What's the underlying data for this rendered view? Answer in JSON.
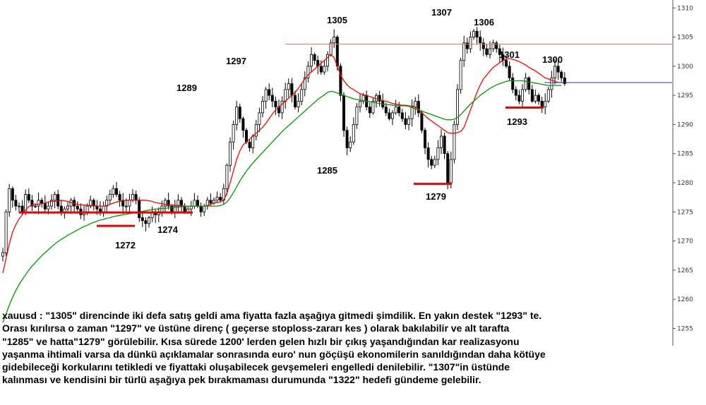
{
  "chart_data": {
    "type": "candlestick",
    "symbol": "xauusd",
    "ylim": [
      1253,
      1311
    ],
    "y_ticks": [
      1255,
      1260,
      1265,
      1270,
      1275,
      1280,
      1285,
      1290,
      1295,
      1300,
      1305,
      1310
    ],
    "grid": false,
    "moving_averages": [
      {
        "color": "#ff0000",
        "values": [
          1264.5,
          1267,
          1269.5,
          1271.5,
          1272.8,
          1273.8,
          1274.5,
          1275.3,
          1275.9,
          1276.2,
          1276.3,
          1276.3,
          1276.4,
          1276.5,
          1276.7,
          1276.8,
          1276.8,
          1276.9,
          1277,
          1276.9,
          1276.8,
          1276.6,
          1276.4,
          1276.3,
          1276.2,
          1276.2,
          1276.1,
          1276.1,
          1276.1,
          1276,
          1276,
          1276,
          1276.1,
          1276.3,
          1276.5,
          1276.7,
          1276.8,
          1276.9,
          1277,
          1277,
          1277,
          1277,
          1277,
          1277,
          1277,
          1276.9,
          1276.8,
          1276.6,
          1276.5,
          1276.4,
          1276.3,
          1276.2,
          1276.2,
          1276.1,
          1276.1,
          1276.1,
          1276,
          1276,
          1276,
          1276,
          1276,
          1276,
          1276,
          1276.1,
          1276.3,
          1276.5,
          1276.6,
          1276.7,
          1277,
          1278.2,
          1280,
          1282,
          1284,
          1285.5,
          1286.5,
          1287,
          1287.5,
          1288,
          1288.5,
          1289,
          1289.5,
          1290.2,
          1291,
          1291.8,
          1292.5,
          1293,
          1293.5,
          1294,
          1294.5,
          1295,
          1295.5,
          1296.2,
          1297,
          1297.8,
          1298.5,
          1299,
          1299.5,
          1300,
          1300.5,
          1301,
          1301.5,
          1302,
          1301.5,
          1300,
          1298.5,
          1297.5,
          1296.8,
          1296.3,
          1296,
          1295.6,
          1295.3,
          1295.1,
          1295,
          1294.8,
          1294.6,
          1294.4,
          1294.3,
          1294.1,
          1294,
          1293.8,
          1293.6,
          1293.5,
          1293.4,
          1293.3,
          1293.3,
          1293.2,
          1293.2,
          1293,
          1292.6,
          1292,
          1291.5,
          1291,
          1290.6,
          1290.2,
          1289.8,
          1289.4,
          1289,
          1288.6,
          1288.5,
          1288.5,
          1288.6,
          1288.8,
          1289.5,
          1291,
          1292.5,
          1294,
          1295.5,
          1296.8,
          1297.8,
          1298.5,
          1299.2,
          1299.8,
          1300.2,
          1300.6,
          1301,
          1301.2,
          1301.3,
          1301.2,
          1301,
          1300.8,
          1300.5,
          1300.2,
          1299.8,
          1299.5,
          1299.2,
          1298.8,
          1298.4,
          1298,
          1297.8,
          1297.6,
          1297.4,
          1297.2,
          1297.2,
          1297.2,
          1297.2
        ]
      },
      {
        "color": "#009900",
        "values": [
          1256,
          1257.5,
          1259,
          1260.3,
          1261.5,
          1262.5,
          1263.4,
          1264.2,
          1265,
          1265.7,
          1266.3,
          1266.9,
          1267.5,
          1268,
          1268.5,
          1269,
          1269.5,
          1269.9,
          1270.3,
          1270.6,
          1271,
          1271.3,
          1271.6,
          1271.9,
          1272.2,
          1272.5,
          1272.7,
          1273,
          1273.2,
          1273.4,
          1273.6,
          1273.7,
          1273.9,
          1274,
          1274.2,
          1274.3,
          1274.4,
          1274.5,
          1274.6,
          1274.7,
          1274.8,
          1274.9,
          1275,
          1275.1,
          1275.2,
          1275.3,
          1275.4,
          1275.5,
          1275.5,
          1275.6,
          1275.6,
          1275.7,
          1275.7,
          1275.8,
          1275.8,
          1275.9,
          1275.9,
          1276,
          1276,
          1276,
          1276,
          1276,
          1276,
          1276,
          1276,
          1276,
          1276,
          1276.1,
          1276.3,
          1276.7,
          1277.4,
          1278.3,
          1279.3,
          1280.3,
          1281.2,
          1282,
          1282.7,
          1283.4,
          1284,
          1284.6,
          1285.2,
          1285.8,
          1286.4,
          1287,
          1287.6,
          1288.2,
          1288.8,
          1289.3,
          1289.8,
          1290.3,
          1290.8,
          1291.3,
          1291.8,
          1292.3,
          1292.8,
          1293.3,
          1293.8,
          1294.3,
          1294.7,
          1295.1,
          1295.5,
          1295.7,
          1295.6,
          1295.4,
          1295.2,
          1295,
          1294.8,
          1294.6,
          1294.4,
          1294.3,
          1294.2,
          1294.1,
          1294,
          1293.9,
          1293.8,
          1293.7,
          1293.6,
          1293.5,
          1293.4,
          1293.4,
          1293.3,
          1293.3,
          1293.2,
          1293.2,
          1293.2,
          1293.1,
          1292.9,
          1292.7,
          1292.5,
          1292.3,
          1292.1,
          1291.9,
          1291.7,
          1291.5,
          1291.3,
          1291.1,
          1290.9,
          1290.8,
          1290.8,
          1290.9,
          1291.2,
          1291.7,
          1292.3,
          1292.9,
          1293.5,
          1294,
          1294.5,
          1295,
          1295.4,
          1295.8,
          1296.2,
          1296.5,
          1296.8,
          1297,
          1297.2,
          1297.4,
          1297.5,
          1297.5,
          1297.5,
          1297.5,
          1297.5,
          1297.4,
          1297.3,
          1297.2,
          1297.1,
          1297,
          1296.9,
          1296.8,
          1296.7,
          1296.7,
          1296.7,
          1296.7,
          1296.7
        ]
      }
    ],
    "price_path": [
      1268,
      1275,
      1279,
      1277,
      1276,
      1276,
      1275,
      1278,
      1277,
      1276,
      1276,
      1277,
      1276.5,
      1275.5,
      1276,
      1277,
      1278,
      1276,
      1275,
      1275.5,
      1276,
      1277,
      1276,
      1275.5,
      1274.5,
      1275,
      1276,
      1277,
      1276,
      1275.5,
      1275,
      1276,
      1277,
      1278,
      1279,
      1278,
      1277,
      1276,
      1276,
      1277,
      1278,
      1277,
      1274,
      1273.5,
      1273,
      1274,
      1275,
      1274.5,
      1275,
      1276,
      1277,
      1276,
      1275,
      1276,
      1277,
      1276,
      1275,
      1275.5,
      1276,
      1277,
      1276,
      1275,
      1276,
      1277,
      1276.5,
      1277,
      1277.5,
      1277,
      1279,
      1283,
      1287,
      1290,
      1293,
      1291,
      1289,
      1287,
      1286,
      1288,
      1290,
      1292,
      1294,
      1296,
      1295,
      1294,
      1293,
      1292,
      1294,
      1296,
      1297,
      1295,
      1293,
      1294,
      1296,
      1298,
      1300,
      1302,
      1301,
      1300,
      1299,
      1300,
      1302,
      1304,
      1305,
      1300,
      1295,
      1289,
      1286,
      1287,
      1290,
      1293,
      1294,
      1295,
      1293,
      1292,
      1294,
      1295,
      1294,
      1293,
      1292,
      1291,
      1292,
      1293,
      1292,
      1291,
      1290,
      1291,
      1293,
      1294,
      1292,
      1289,
      1286,
      1284,
      1283,
      1284,
      1286,
      1288,
      1285,
      1280,
      1284,
      1290,
      1296,
      1301,
      1304,
      1303,
      1305,
      1306,
      1305,
      1304,
      1303,
      1302,
      1303,
      1304,
      1303,
      1302,
      1301,
      1300,
      1298,
      1296,
      1295,
      1294,
      1296,
      1298,
      1296,
      1294,
      1295,
      1294,
      1293,
      1294,
      1296,
      1298,
      1300,
      1299,
      1298,
      1297
    ],
    "horizontal_lines": [
      {
        "y": 1303.8,
        "color": "#f07878"
      },
      {
        "y": 1297.2,
        "color": "#3333aa"
      }
    ],
    "support_lines": [
      {
        "y": 1274.9
      },
      {
        "y": 1272.6
      },
      {
        "y": 1279.8
      },
      {
        "y": 1292.9
      }
    ],
    "annotations": [
      {
        "text": "1305"
      },
      {
        "text": "1307"
      },
      {
        "text": "1306"
      },
      {
        "text": "1297"
      },
      {
        "text": "1301"
      },
      {
        "text": "1300"
      },
      {
        "text": "1289"
      },
      {
        "text": "1293"
      },
      {
        "text": "1285"
      },
      {
        "text": "1279"
      },
      {
        "text": "1274"
      },
      {
        "text": "1272"
      }
    ],
    "colors": {
      "candle_up": "#ffffff",
      "candle_down": "#000000",
      "support_line": "#ee0000"
    }
  },
  "commentary_lines": [
    "xauusd : \"1305\" direncinde iki defa satış geldi ama fiyatta fazla aşağıya gitmedi şimdilik. En yakın destek \"1293\" te.",
    "Orası kırılırsa o zaman \"1297\" ve üstüne direnç ( geçerse stoploss-zararı kes ) olarak bakılabilir ve alt tarafta",
    "\"1285\" ve hatta\"1279\" görülebilir. Kısa sürede 1200' lerden gelen hızlı bir çıkış yaşandığından kar realizasyonu",
    "yaşanma ihtimali varsa da dünkü açıklamalar sonrasında euro' nun göçüşü ekonomilerin sanıldığından daha kötüye",
    "gidebileceği korkularını tetikledi ve fiyattaki oluşabilecek gevşemeleri engelledi denilebilir. \"1307\"in üstünde",
    "kalınması ve kendisini bir türlü aşağıya pek bırakmaması durumunda \"1322\" hedefi gündeme gelebilir."
  ]
}
